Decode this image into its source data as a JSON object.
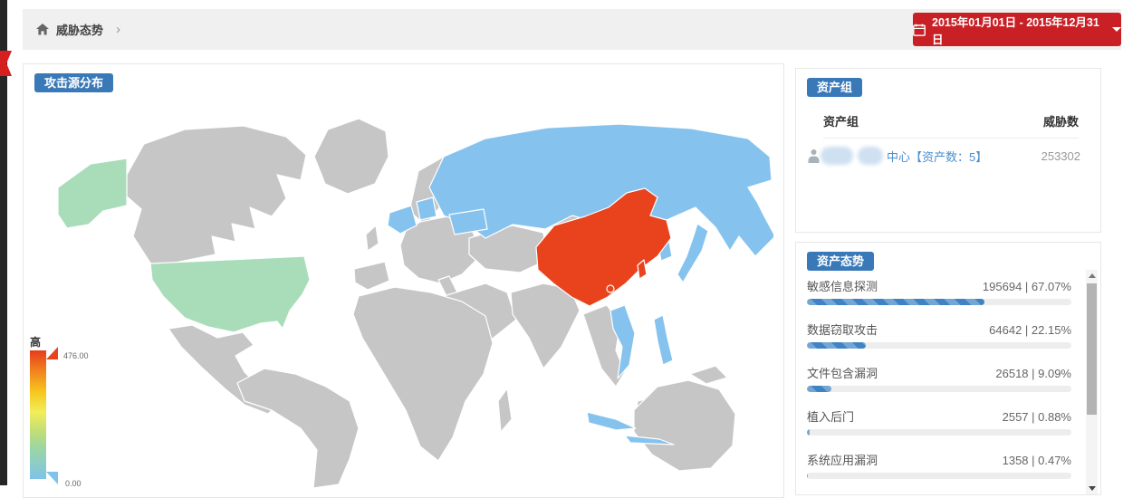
{
  "breadcrumb": {
    "label": "威胁态势",
    "separator": "›",
    "home_icon": "home"
  },
  "date_picker": {
    "label": "2015年01月01日 - 2015年12月31日",
    "calendar_icon": "calendar",
    "chevron_icon": "chevron-down",
    "background_color": "#c92026"
  },
  "map_panel": {
    "title": "攻击源分布",
    "type": "choropleth-world-map",
    "legend": {
      "high_label": "高",
      "max_value": "476.00",
      "min_value": "0.00",
      "gradient": [
        "#e63c1e",
        "#f07a1e",
        "#f6c51e",
        "#f2ee5a",
        "#c0de77",
        "#7fc3e8"
      ]
    },
    "colors": {
      "high": "#e8431d",
      "medium": "#85c3ee",
      "low": "#a9ddb9",
      "none": "#c6c6c6"
    },
    "regions": [
      {
        "name": "China",
        "level": "high"
      },
      {
        "name": "Taiwan",
        "level": "high"
      },
      {
        "name": "Hainan",
        "level": "high"
      },
      {
        "name": "Russia",
        "level": "medium"
      },
      {
        "name": "France",
        "level": "medium"
      },
      {
        "name": "Germany-Benelux",
        "level": "medium"
      },
      {
        "name": "Ukraine",
        "level": "medium"
      },
      {
        "name": "South Korea",
        "level": "medium"
      },
      {
        "name": "Japan",
        "level": "medium"
      },
      {
        "name": "Vietnam",
        "level": "medium"
      },
      {
        "name": "Philippines",
        "level": "medium"
      },
      {
        "name": "Indonesia",
        "level": "medium"
      },
      {
        "name": "United States",
        "level": "low"
      },
      {
        "name": "Alaska (US)",
        "level": "low"
      },
      {
        "name": "Other countries",
        "level": "none"
      }
    ]
  },
  "asset_group_panel": {
    "title": "资产组",
    "columns": {
      "group": "资产组",
      "threats": "威胁数"
    },
    "row": {
      "icon": "group-icon",
      "redacted_prefix": true,
      "name_visible": "中心【资产数：5】",
      "threat_count": "253302"
    }
  },
  "asset_status_panel": {
    "title": "资产态势",
    "bar_color": "#3f83c4",
    "items": [
      {
        "label": "敏感信息探测",
        "value": 195694,
        "percent": "67.07%",
        "percent_value": 67.07,
        "display": "195694 | 67.07%"
      },
      {
        "label": "数据窃取攻击",
        "value": 64642,
        "percent": "22.15%",
        "percent_value": 22.15,
        "display": "64642 | 22.15%"
      },
      {
        "label": "文件包含漏洞",
        "value": 26518,
        "percent": "9.09%",
        "percent_value": 9.09,
        "display": "26518 | 9.09%"
      },
      {
        "label": "植入后门",
        "value": 2557,
        "percent": "0.88%",
        "percent_value": 0.88,
        "display": "2557 | 0.88%"
      },
      {
        "label": "系统应用漏洞",
        "value": 1358,
        "percent": "0.47%",
        "percent_value": 0.47,
        "display": "1358 | 0.47%"
      }
    ]
  }
}
